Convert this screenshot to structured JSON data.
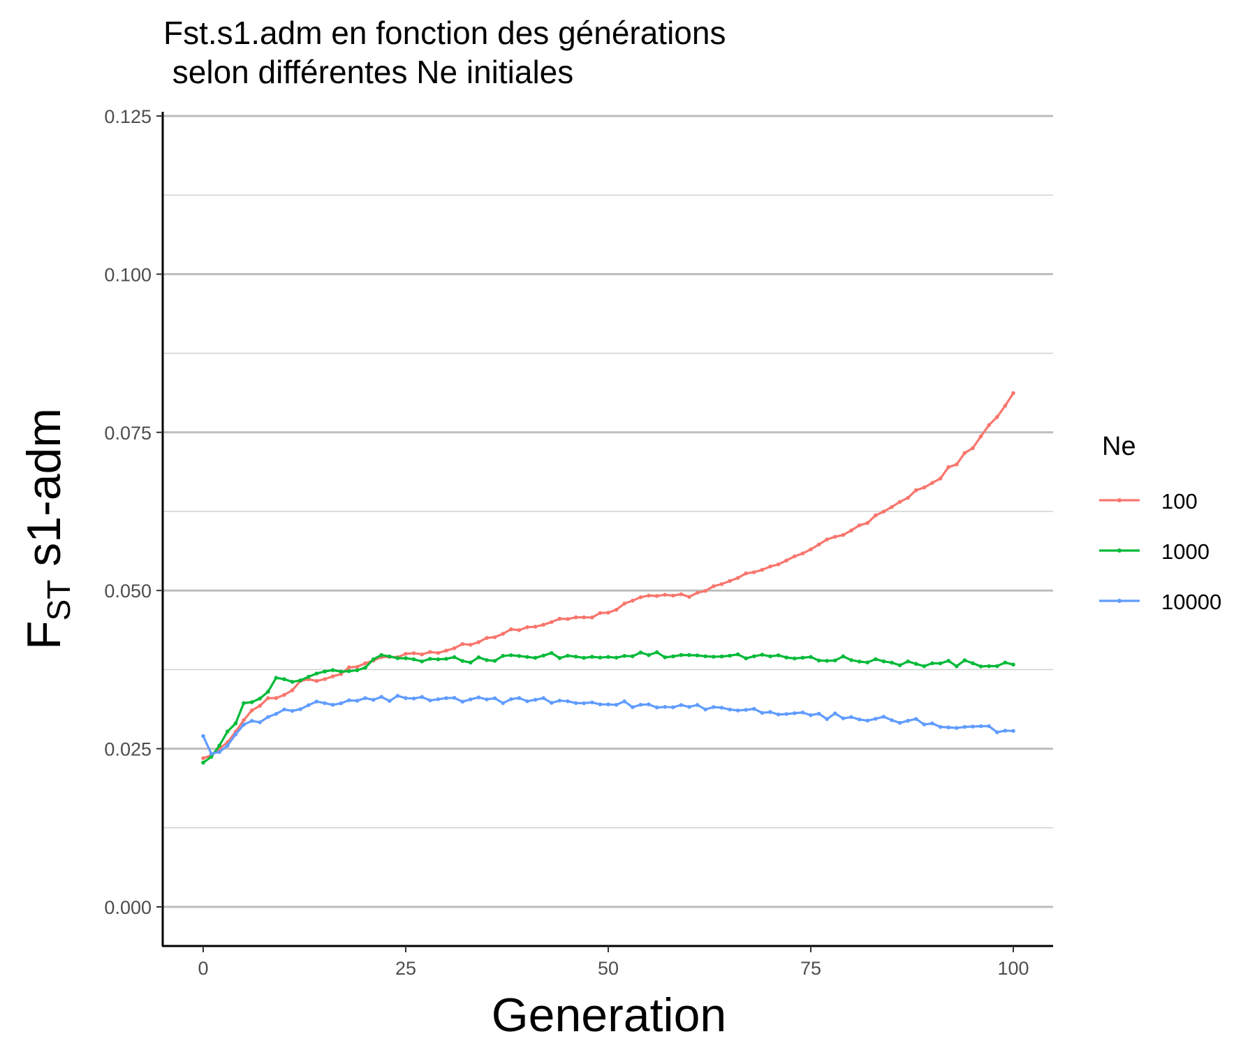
{
  "chart_data": {
    "type": "line",
    "title_line1": "Fst.s1.adm en fonction des générations",
    "title_line2": " selon différentes Ne initiales",
    "xlabel": "Generation",
    "ylabel_main": "F",
    "ylabel_sub": "ST",
    "ylabel_rest": " s1-adm",
    "xlim": [
      -5,
      105
    ],
    "ylim": [
      -0.006,
      0.1245
    ],
    "x_ticks": [
      0,
      25,
      50,
      75,
      100
    ],
    "x_tick_labels": [
      "0",
      "25",
      "50",
      "75",
      "100"
    ],
    "y_ticks": [
      0,
      0.025,
      0.05,
      0.075,
      0.1,
      0.125
    ],
    "y_tick_labels": [
      "0.000",
      "0.025",
      "0.050",
      "0.075",
      "0.100",
      "0.125"
    ],
    "y_minor_ticks": [
      0.0125,
      0.0375,
      0.0625,
      0.0875,
      0.1125
    ],
    "grid": "horizontal",
    "legend": {
      "title": "Ne",
      "position": "right"
    },
    "series": [
      {
        "name": "100",
        "color": "#F8766D",
        "anchors": [
          [
            0,
            0.0235
          ],
          [
            3,
            0.026
          ],
          [
            5,
            0.0295
          ],
          [
            8,
            0.033
          ],
          [
            10,
            0.0335
          ],
          [
            12,
            0.0357
          ],
          [
            15,
            0.036
          ],
          [
            20,
            0.0385
          ],
          [
            25,
            0.04
          ],
          [
            30,
            0.0405
          ],
          [
            35,
            0.0425
          ],
          [
            40,
            0.0442
          ],
          [
            45,
            0.0455
          ],
          [
            50,
            0.0465
          ],
          [
            55,
            0.0492
          ],
          [
            60,
            0.049
          ],
          [
            65,
            0.0515
          ],
          [
            70,
            0.0538
          ],
          [
            75,
            0.0565
          ],
          [
            80,
            0.0595
          ],
          [
            85,
            0.0632
          ],
          [
            90,
            0.067
          ],
          [
            95,
            0.0725
          ],
          [
            100,
            0.0812
          ]
        ],
        "noise": 0.0004
      },
      {
        "name": "1000",
        "color": "#00BA38",
        "anchors": [
          [
            0,
            0.0228
          ],
          [
            2,
            0.0255
          ],
          [
            4,
            0.029
          ],
          [
            5,
            0.0322
          ],
          [
            8,
            0.034
          ],
          [
            9,
            0.0362
          ],
          [
            12,
            0.0358
          ],
          [
            15,
            0.0372
          ],
          [
            20,
            0.0378
          ],
          [
            22,
            0.0398
          ],
          [
            25,
            0.0393
          ],
          [
            30,
            0.0392
          ],
          [
            35,
            0.039
          ],
          [
            40,
            0.0395
          ],
          [
            45,
            0.0397
          ],
          [
            50,
            0.0395
          ],
          [
            55,
            0.0398
          ],
          [
            60,
            0.0398
          ],
          [
            65,
            0.0397
          ],
          [
            70,
            0.0396
          ],
          [
            75,
            0.0395
          ],
          [
            80,
            0.039
          ],
          [
            85,
            0.0386
          ],
          [
            90,
            0.0385
          ],
          [
            95,
            0.0385
          ],
          [
            100,
            0.0383
          ]
        ],
        "noise": 0.0005
      },
      {
        "name": "10000",
        "color": "#619CFF",
        "anchors": [
          [
            0,
            0.027
          ],
          [
            1,
            0.0242
          ],
          [
            3,
            0.0255
          ],
          [
            5,
            0.0288
          ],
          [
            8,
            0.03
          ],
          [
            10,
            0.0312
          ],
          [
            15,
            0.0322
          ],
          [
            20,
            0.033
          ],
          [
            25,
            0.033
          ],
          [
            30,
            0.033
          ],
          [
            35,
            0.0328
          ],
          [
            40,
            0.0325
          ],
          [
            45,
            0.0325
          ],
          [
            50,
            0.032
          ],
          [
            55,
            0.032
          ],
          [
            60,
            0.0316
          ],
          [
            65,
            0.0312
          ],
          [
            70,
            0.0308
          ],
          [
            75,
            0.0303
          ],
          [
            80,
            0.03
          ],
          [
            85,
            0.0295
          ],
          [
            90,
            0.029
          ],
          [
            95,
            0.0285
          ],
          [
            100,
            0.0278
          ]
        ],
        "noise": 0.0005
      }
    ]
  }
}
